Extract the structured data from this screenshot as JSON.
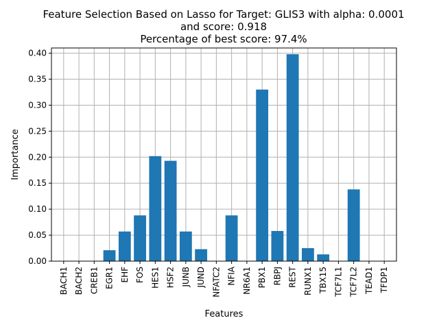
{
  "chart_data": {
    "type": "bar",
    "title_lines": [
      "Feature Selection Based on Lasso for Target: GLIS3 with alpha: 0.0001",
      "and score: 0.918",
      "Percentage of best score: 97.4%"
    ],
    "xlabel": "Features",
    "ylabel": "Importance",
    "categories": [
      "BACH1",
      "BACH2",
      "CREB1",
      "EGR1",
      "EHF",
      "FOS",
      "HES1",
      "HSF2",
      "JUNB",
      "JUND",
      "NFATC2",
      "NFIA",
      "NR6A1",
      "PBX1",
      "RBPJ",
      "REST",
      "RUNX1",
      "TBX15",
      "TCF7L1",
      "TCF7L2",
      "TEAD1",
      "TFDP1"
    ],
    "values": [
      0,
      0,
      0,
      0.021,
      0.057,
      0.088,
      0.202,
      0.193,
      0.057,
      0.023,
      0,
      0.088,
      0,
      0.33,
      0.058,
      0.398,
      0.025,
      0.013,
      0,
      0.138,
      0,
      0
    ],
    "ylim": [
      0,
      0.41
    ],
    "yticks": [
      0.0,
      0.05,
      0.1,
      0.15,
      0.2,
      0.25,
      0.3,
      0.35,
      0.4
    ],
    "ytick_labels": [
      "0.00",
      "0.05",
      "0.10",
      "0.15",
      "0.20",
      "0.25",
      "0.30",
      "0.35",
      "0.40"
    ],
    "grid": true,
    "bar_color": "#1f77b4",
    "grid_color": "#b0b0b0"
  }
}
